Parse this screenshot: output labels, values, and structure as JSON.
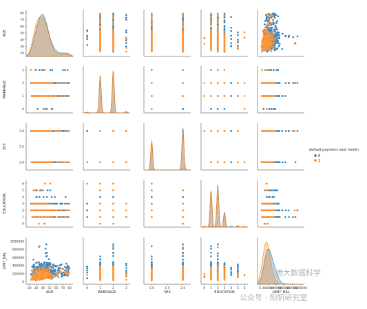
{
  "chart_data": {
    "type": "scatter",
    "title": "",
    "variables": [
      "AGE",
      "MARRIAGE",
      "SEX",
      "EDUCATION",
      "LIMIT_BAL"
    ],
    "ranges": {
      "AGE": [
        15,
        85
      ],
      "MARRIAGE": [
        -0.3,
        3.3
      ],
      "SEX": [
        0.75,
        2.25
      ],
      "EDUCATION": [
        -0.5,
        6.5
      ],
      "LIMIT_BAL": [
        -60000,
        1100000
      ]
    },
    "ticks": {
      "AGE": [
        "20",
        "30",
        "40",
        "50",
        "60",
        "70",
        "80"
      ],
      "MARRIAGE": [
        "0",
        "1",
        "2",
        "3"
      ],
      "SEX": [
        "1.0",
        "1.5",
        "2.0"
      ],
      "EDUCATION": [
        "0",
        "1",
        "2",
        "3",
        "4",
        "5",
        "6"
      ],
      "LIMIT_BAL": [
        "0",
        "200000",
        "400000",
        "600000",
        "800000",
        "1000000"
      ]
    },
    "tick_values": {
      "AGE": [
        20,
        30,
        40,
        50,
        60,
        70,
        80
      ],
      "MARRIAGE": [
        0,
        1,
        2,
        3
      ],
      "SEX": [
        1.0,
        1.5,
        2.0
      ],
      "EDUCATION": [
        0,
        1,
        2,
        3,
        4,
        5,
        6
      ],
      "LIMIT_BAL": [
        0,
        200000,
        400000,
        600000,
        800000,
        1000000
      ]
    },
    "discrete_levels": {
      "MARRIAGE": [
        0,
        1,
        2,
        3
      ],
      "SEX": [
        1,
        2
      ],
      "EDUCATION": [
        0,
        1,
        2,
        3,
        4,
        5,
        6
      ]
    },
    "hue": {
      "name": "default payment next month",
      "levels": [
        {
          "label": "0",
          "color": "#1f77b4"
        },
        {
          "label": "1",
          "color": "#ff7f0e"
        }
      ]
    },
    "diagonal": "kde",
    "grid": false,
    "legend_position": "right"
  },
  "watermark": {
    "text1": "港大数据科学",
    "text2": "公众号 · 阳帆研究室"
  }
}
